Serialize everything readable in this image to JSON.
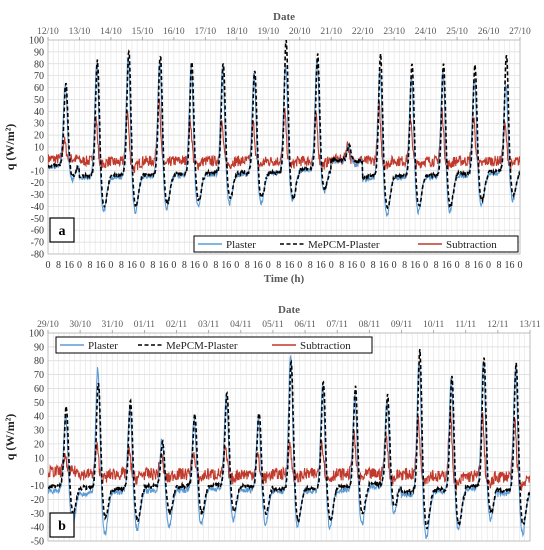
{
  "chart_data": [
    {
      "type": "line",
      "panel_label": "a",
      "top_axis_title": "Date",
      "top_axis_labels": [
        "12/10",
        "13/10",
        "14/10",
        "15/10",
        "16/10",
        "17/10",
        "18/10",
        "19/10",
        "20/10",
        "21/10",
        "22/10",
        "23/10",
        "24/10",
        "25/10",
        "26/10",
        "27/10"
      ],
      "xlabel": "Time (h)",
      "x_hour_ticks": [
        "0",
        "8",
        "16"
      ],
      "ylabel": "q (W/m²)",
      "ylim": [
        -80,
        100
      ],
      "yticks": [
        -80,
        -70,
        -60,
        -50,
        -40,
        -30,
        -20,
        -10,
        0,
        10,
        20,
        30,
        40,
        50,
        60,
        70,
        80,
        90,
        100
      ],
      "grid": true,
      "legend_placement": "bottom-right",
      "series": [
        {
          "name": "Plaster",
          "color": "#5b9bd5",
          "style": "solid",
          "daily_peaks": [
            62,
            80,
            86,
            82,
            78,
            77,
            72,
            80,
            85,
            10,
            75,
            70,
            75,
            70,
            64
          ],
          "daily_troughs": [
            -18,
            -45,
            -45,
            -42,
            -40,
            -38,
            -38,
            -35,
            -28,
            -5,
            -48,
            -45,
            -45,
            -40,
            -35
          ]
        },
        {
          "name": "MePCM-Plaster",
          "color": "#000000",
          "style": "dashed",
          "daily_peaks": [
            65,
            83,
            92,
            88,
            82,
            82,
            75,
            100,
            88,
            12,
            88,
            82,
            82,
            80,
            88
          ],
          "daily_troughs": [
            -15,
            -40,
            -40,
            -38,
            -35,
            -33,
            -33,
            -33,
            -25,
            -3,
            -42,
            -40,
            -40,
            -35,
            -30
          ]
        },
        {
          "name": "Subtraction",
          "color": "#c0392b",
          "style": "solid",
          "daily_peaks": [
            15,
            35,
            40,
            52,
            32,
            30,
            30,
            40,
            35,
            12,
            45,
            35,
            40,
            35,
            28
          ],
          "daily_troughs": [
            0,
            -5,
            -8,
            -5,
            -5,
            -5,
            -5,
            -5,
            -5,
            -2,
            -5,
            -5,
            -5,
            -5,
            -5
          ]
        }
      ]
    },
    {
      "type": "line",
      "panel_label": "b",
      "top_axis_title": "Date",
      "top_axis_labels": [
        "29/10",
        "30/10",
        "31/10",
        "01/11",
        "02/11",
        "03/11",
        "04/11",
        "05/11",
        "06/11",
        "07/11",
        "08/11",
        "09/11",
        "10/11",
        "11/11",
        "12/11",
        "13/11"
      ],
      "xlabel": "",
      "ylabel": "q (W/m²)",
      "ylim": [
        -50,
        100
      ],
      "yticks": [
        -50,
        -40,
        -30,
        -20,
        -10,
        0,
        10,
        20,
        30,
        40,
        50,
        60,
        70,
        80,
        90,
        100
      ],
      "grid": true,
      "legend_placement": "top",
      "series": [
        {
          "name": "Plaster",
          "color": "#5b9bd5",
          "style": "solid",
          "daily_peaks": [
            42,
            75,
            48,
            25,
            38,
            55,
            40,
            85,
            62,
            55,
            50,
            80,
            68,
            80,
            75,
            70
          ],
          "daily_troughs": [
            -40,
            -45,
            -42,
            -40,
            -38,
            -35,
            -38,
            -40,
            -40,
            -38,
            -30,
            -48,
            -42,
            -35,
            -45,
            -48
          ]
        },
        {
          "name": "MePCM-Plaster",
          "color": "#000000",
          "style": "dashed",
          "daily_peaks": [
            48,
            65,
            52,
            22,
            42,
            58,
            44,
            80,
            66,
            62,
            56,
            88,
            70,
            82,
            78,
            82
          ],
          "daily_troughs": [
            -30,
            -33,
            -35,
            -30,
            -30,
            -28,
            -30,
            -35,
            -35,
            -30,
            -25,
            -40,
            -38,
            -30,
            -38,
            -38
          ]
        },
        {
          "name": "Subtraction",
          "color": "#c0392b",
          "style": "solid",
          "daily_peaks": [
            10,
            18,
            15,
            12,
            14,
            16,
            12,
            20,
            22,
            26,
            28,
            38,
            42,
            40,
            38,
            40
          ],
          "daily_troughs": [
            0,
            -5,
            -5,
            -5,
            -5,
            -5,
            -5,
            -5,
            -5,
            -5,
            -5,
            -5,
            -10,
            -10,
            -10,
            -20
          ]
        }
      ]
    }
  ]
}
